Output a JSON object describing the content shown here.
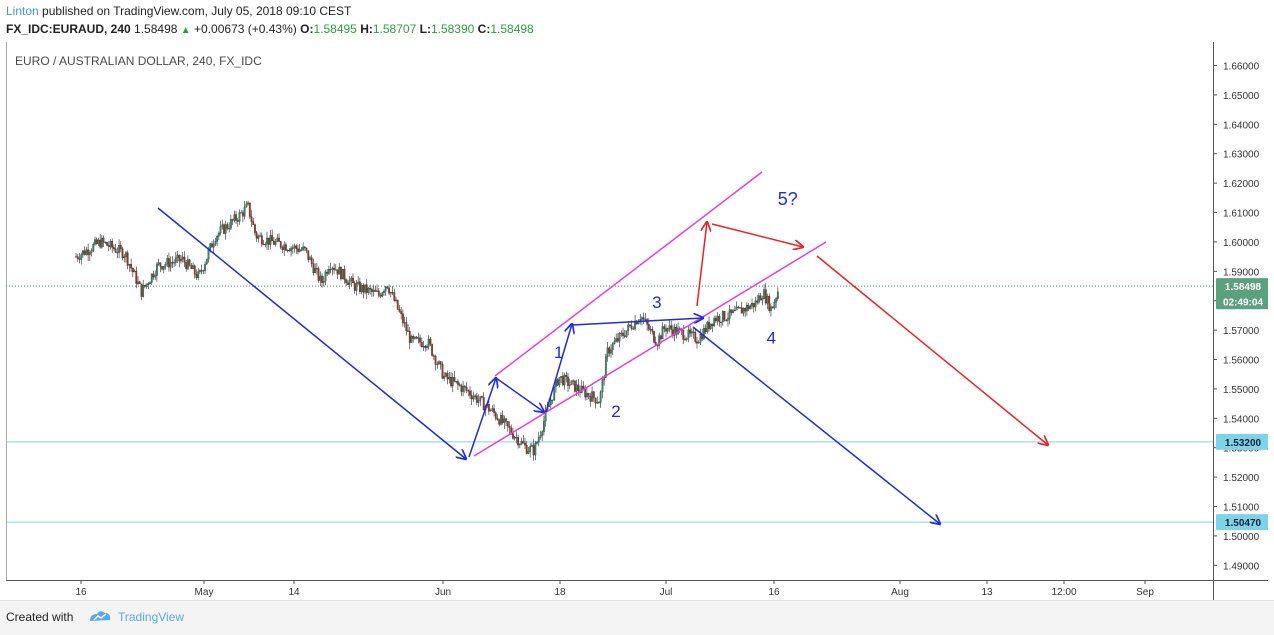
{
  "header": {
    "author": "Linton",
    "published": " published on TradingView.com, July 05, 2018 09:10 CEST",
    "symbol": "FX_IDC:EURAUD, 240",
    "last": "1.58498",
    "change": "+0.00673 (+0.43%)",
    "o_label": "O:",
    "o_value": "1.58495",
    "h_label": "H:",
    "h_value": "1.58707",
    "l_label": "L:",
    "l_value": "1.58390",
    "c_label": "C:",
    "c_value": "1.58498"
  },
  "footer": {
    "created_with": "Created with",
    "brand": "TradingView"
  },
  "colors": {
    "up": "#2f8f6b",
    "down": "#a3312b",
    "pink": "#e040e0",
    "blue": "#1f2be0",
    "red": "#ee2222",
    "hline": "#7fd3e8"
  },
  "chart_data": {
    "type": "candlestick",
    "title": "EURO / AUSTRALIAN DOLLAR, 240, FX_IDC",
    "ylim": [
      1.485,
      1.668
    ],
    "y_ticks": [
      "1.49000",
      "1.50000",
      "1.51000",
      "1.52000",
      "1.53000",
      "1.54000",
      "1.55000",
      "1.56000",
      "1.57000",
      "1.58000",
      "1.59000",
      "1.60000",
      "1.61000",
      "1.62000",
      "1.63000",
      "1.64000",
      "1.65000",
      "1.66000"
    ],
    "x_ticks": [
      "16",
      "May",
      "14",
      "Jun",
      "18",
      "Jul",
      "16",
      "Aug",
      "13",
      "12:00",
      "Sep"
    ],
    "price_labels": [
      {
        "text": "1.58498",
        "value": 1.58498,
        "color": "#5ca17e"
      },
      {
        "text": "02:49:04",
        "value": 1.5798,
        "color": "#5ca17e"
      },
      {
        "text": "1.53200",
        "value": 1.532,
        "color": "#7fd3e8"
      },
      {
        "text": "1.50470",
        "value": 1.5047,
        "color": "#7fd3e8"
      }
    ],
    "horizontal_lines": [
      1.532,
      1.5047
    ],
    "last_price_line": 1.58498,
    "price_path": [
      [
        "Apr 10",
        1.595
      ],
      [
        "Apr 13",
        1.6
      ],
      [
        "Apr 16",
        1.596
      ],
      [
        "Apr 18",
        1.583
      ],
      [
        "Apr 20",
        1.592
      ],
      [
        "Apr 23",
        1.594
      ],
      [
        "Apr 25",
        1.588
      ],
      [
        "Apr 27",
        1.602
      ],
      [
        "Apr 30",
        1.609
      ],
      [
        "May 01",
        1.612
      ],
      [
        "May 02",
        1.602
      ],
      [
        "May 04",
        1.6
      ],
      [
        "May 08",
        1.597
      ],
      [
        "May 10",
        1.586
      ],
      [
        "May 11",
        1.593
      ],
      [
        "May 14",
        1.585
      ],
      [
        "May 17",
        1.582
      ],
      [
        "May 18",
        1.586
      ],
      [
        "May 21",
        1.566
      ],
      [
        "May 23",
        1.566
      ],
      [
        "May 25",
        1.554
      ],
      [
        "May 28",
        1.549
      ],
      [
        "May 31",
        1.542
      ],
      [
        "Jun 04",
        1.53
      ],
      [
        "Jun 05",
        1.529
      ],
      [
        "Jun 07",
        1.546
      ],
      [
        "Jun 08",
        1.554
      ],
      [
        "Jun 11",
        1.549
      ],
      [
        "Jun 13",
        1.546
      ],
      [
        "Jun 14",
        1.563
      ],
      [
        "Jun 18",
        1.575
      ],
      [
        "Jun 20",
        1.566
      ],
      [
        "Jun 21",
        1.571
      ],
      [
        "Jun 25",
        1.567
      ],
      [
        "Jun 27",
        1.574
      ],
      [
        "Jun 29",
        1.575
      ],
      [
        "Jul 02",
        1.579
      ],
      [
        "Jul 03",
        1.583
      ],
      [
        "Jul 04",
        1.577
      ],
      [
        "Jul 05",
        1.585
      ]
    ],
    "wave_labels": [
      {
        "text": "1",
        "x": "Jun 08",
        "y": 1.5605
      },
      {
        "text": "2",
        "x": "Jun 15",
        "y": 1.5405
      },
      {
        "text": "3",
        "x": "Jun 20",
        "y": 1.5775
      },
      {
        "text": "4",
        "x": "Jul 04",
        "y": 1.5655
      },
      {
        "text": "5?",
        "x": "Jul 06",
        "y": 1.6125
      }
    ]
  }
}
